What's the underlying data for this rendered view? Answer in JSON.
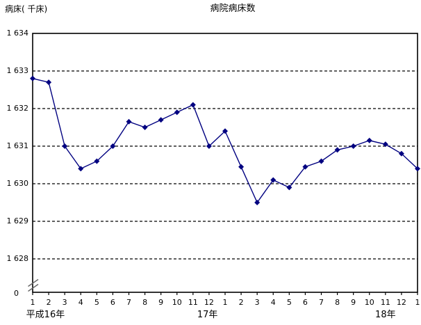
{
  "page": {
    "background_color": "#ffffff",
    "text_color": "#000000"
  },
  "chart_data": {
    "type": "line",
    "title": "病院病床数",
    "y_axis_unit_label": "病床( 千床)",
    "origin_label": "0",
    "legend": "none",
    "grid": "horizontal-dashed",
    "axis_break_above_zero": true,
    "line_color": "#000080",
    "marker": "diamond",
    "ylim": [
      1628,
      1634
    ],
    "y_tick_labels": [
      "1 634",
      "1 633",
      "1 632",
      "1 631",
      "1 630",
      "1 629",
      "1 628"
    ],
    "y_tick_values": [
      1634,
      1633,
      1632,
      1631,
      1630,
      1629,
      1628
    ],
    "x_tick_labels": [
      "1",
      "2",
      "3",
      "4",
      "5",
      "6",
      "7",
      "8",
      "9",
      "10",
      "11",
      "12",
      "1",
      "2",
      "3",
      "4",
      "5",
      "6",
      "7",
      "8",
      "9",
      "10",
      "11",
      "12",
      "1"
    ],
    "x_year_labels": [
      {
        "label": "平成16年",
        "x_index": 0.8
      },
      {
        "label": "17年",
        "x_index": 10.9
      },
      {
        "label": "18年",
        "x_index": 22.0
      }
    ],
    "series": [
      {
        "name": "病院病床数",
        "values": [
          1632.8,
          1632.7,
          1631.0,
          1630.4,
          1630.6,
          1631.0,
          1631.65,
          1631.5,
          1631.7,
          1631.9,
          1632.1,
          1631.0,
          1631.4,
          1630.45,
          1629.5,
          1630.1,
          1629.9,
          1630.45,
          1630.6,
          1630.9,
          1631.0,
          1631.15,
          1631.05,
          1630.8,
          1630.4
        ]
      }
    ]
  }
}
